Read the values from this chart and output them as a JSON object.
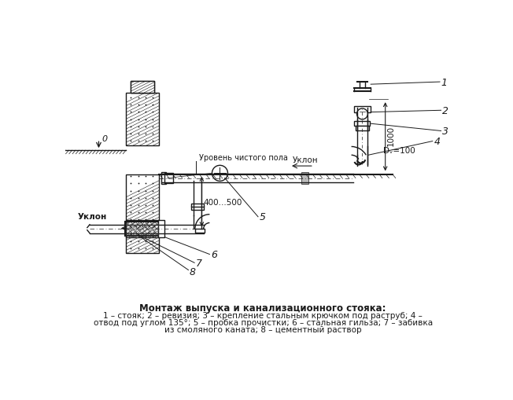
{
  "title": "Монтаж выпуска и канализационного стояка:",
  "cap1": "1 – стояк; 2 – ревизия; 3 – крепление стальным крючком под раструб; 4 –",
  "cap2": "отвод под углом 135°; 5 – пробка прочистки; 6 – стальная гильза; 7 – забивка",
  "cap3": "из смоляного каната; 8 – цементный раствор",
  "bg": "#ffffff",
  "lc": "#1a1a1a",
  "label_floor": "Уровень чистого пола",
  "label_uklon1": "Уклон",
  "label_uklon2": "Уклон",
  "label_dim": "400...500",
  "label_1000": "1000",
  "label_dv": "Dᵥ=100",
  "label_0": "0",
  "n1": "1",
  "n2": "2",
  "n3": "3",
  "n4": "4",
  "n5": "5",
  "n6": "6",
  "n7": "7",
  "n8": "8"
}
